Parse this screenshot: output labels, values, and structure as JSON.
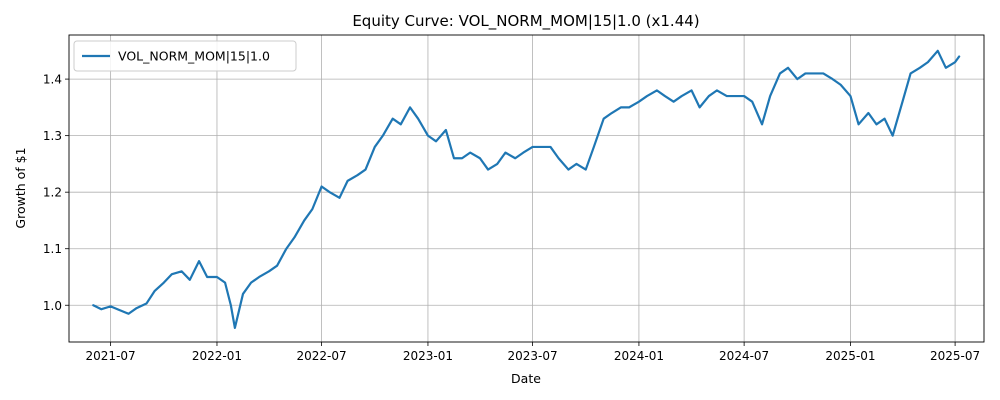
{
  "chart_data": {
    "type": "line",
    "title": "Equity Curve: VOL_NORM_MOM|15|1.0 (x1.44)",
    "xlabel": "Date",
    "ylabel": "Growth of $1",
    "xlim": [
      "2021-04-20",
      "2025-08-20"
    ],
    "ylim": [
      0.935,
      1.478
    ],
    "grid": true,
    "legend_position": "top-left",
    "x_tick_labels": [
      "2021-07",
      "2022-01",
      "2022-07",
      "2023-01",
      "2023-07",
      "2024-01",
      "2024-07",
      "2025-01",
      "2025-07"
    ],
    "x_tick_values": [
      "2021-07-01",
      "2022-01-01",
      "2022-07-01",
      "2023-01-01",
      "2023-07-01",
      "2024-01-01",
      "2024-07-01",
      "2025-01-01",
      "2025-07-01"
    ],
    "y_tick_labels": [
      "1.0",
      "1.1",
      "1.2",
      "1.3",
      "1.4"
    ],
    "y_tick_values": [
      1.0,
      1.1,
      1.2,
      1.3,
      1.4
    ],
    "series": [
      {
        "name": "VOL_NORM_MOM|15|1.0",
        "color": "#1f77b4",
        "x": [
          "2021-06-01",
          "2021-06-15",
          "2021-07-01",
          "2021-07-15",
          "2021-08-01",
          "2021-08-15",
          "2021-09-01",
          "2021-09-15",
          "2021-10-01",
          "2021-10-15",
          "2021-11-01",
          "2021-11-15",
          "2021-12-01",
          "2021-12-15",
          "2022-01-01",
          "2022-01-15",
          "2022-01-25",
          "2022-02-01",
          "2022-02-15",
          "2022-03-01",
          "2022-03-15",
          "2022-04-01",
          "2022-04-15",
          "2022-05-01",
          "2022-05-15",
          "2022-06-01",
          "2022-06-15",
          "2022-07-01",
          "2022-07-15",
          "2022-08-01",
          "2022-08-15",
          "2022-09-01",
          "2022-09-15",
          "2022-10-01",
          "2022-10-15",
          "2022-11-01",
          "2022-11-15",
          "2022-12-01",
          "2022-12-15",
          "2023-01-01",
          "2023-01-15",
          "2023-02-01",
          "2023-02-15",
          "2023-03-01",
          "2023-03-15",
          "2023-04-01",
          "2023-04-15",
          "2023-05-01",
          "2023-05-15",
          "2023-06-01",
          "2023-06-15",
          "2023-07-01",
          "2023-07-15",
          "2023-08-01",
          "2023-08-15",
          "2023-09-01",
          "2023-09-15",
          "2023-10-01",
          "2023-10-15",
          "2023-11-01",
          "2023-11-15",
          "2023-12-01",
          "2023-12-15",
          "2024-01-01",
          "2024-01-15",
          "2024-02-01",
          "2024-02-15",
          "2024-03-01",
          "2024-03-15",
          "2024-04-01",
          "2024-04-15",
          "2024-05-01",
          "2024-05-15",
          "2024-06-01",
          "2024-06-15",
          "2024-07-01",
          "2024-07-15",
          "2024-08-01",
          "2024-08-15",
          "2024-09-01",
          "2024-09-15",
          "2024-10-01",
          "2024-10-15",
          "2024-11-01",
          "2024-11-15",
          "2024-12-01",
          "2024-12-15",
          "2025-01-01",
          "2025-01-15",
          "2025-02-01",
          "2025-02-15",
          "2025-03-01",
          "2025-03-15",
          "2025-04-01",
          "2025-04-15",
          "2025-05-01",
          "2025-05-15",
          "2025-06-01",
          "2025-06-15",
          "2025-07-01",
          "2025-07-08"
        ],
        "values": [
          1.0,
          0.993,
          0.998,
          0.992,
          0.985,
          0.995,
          1.003,
          1.025,
          1.04,
          1.055,
          1.06,
          1.045,
          1.078,
          1.05,
          1.05,
          1.04,
          1.0,
          0.96,
          1.02,
          1.04,
          1.05,
          1.06,
          1.07,
          1.1,
          1.12,
          1.15,
          1.17,
          1.21,
          1.2,
          1.19,
          1.22,
          1.23,
          1.24,
          1.28,
          1.3,
          1.33,
          1.32,
          1.35,
          1.33,
          1.3,
          1.29,
          1.31,
          1.26,
          1.26,
          1.27,
          1.26,
          1.24,
          1.25,
          1.27,
          1.26,
          1.27,
          1.28,
          1.28,
          1.28,
          1.26,
          1.24,
          1.25,
          1.24,
          1.28,
          1.33,
          1.34,
          1.35,
          1.35,
          1.36,
          1.37,
          1.38,
          1.37,
          1.36,
          1.37,
          1.38,
          1.35,
          1.37,
          1.38,
          1.37,
          1.37,
          1.37,
          1.36,
          1.32,
          1.37,
          1.41,
          1.42,
          1.4,
          1.41,
          1.41,
          1.41,
          1.4,
          1.39,
          1.37,
          1.32,
          1.34,
          1.32,
          1.33,
          1.3,
          1.36,
          1.41,
          1.42,
          1.43,
          1.45,
          1.42,
          1.43,
          1.44
        ]
      }
    ]
  }
}
